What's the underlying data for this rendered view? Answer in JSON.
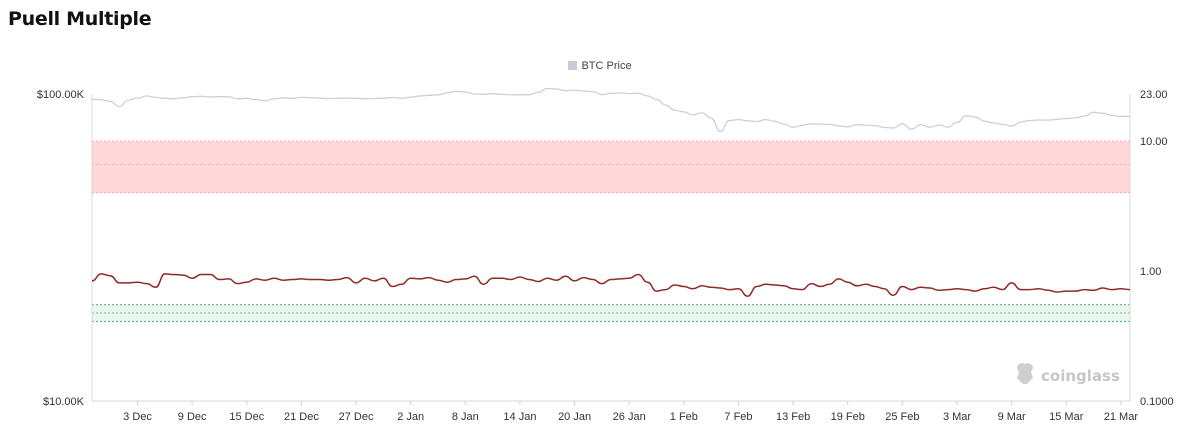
{
  "chart_data": {
    "type": "line",
    "title": "Puell Multiple",
    "legend": [
      {
        "label": "BTC Price",
        "color": "#c9cad3"
      }
    ],
    "watermark": "coinglass",
    "x_ticks": [
      "3 Dec",
      "9 Dec",
      "15 Dec",
      "21 Dec",
      "27 Dec",
      "2 Jan",
      "8 Jan",
      "14 Jan",
      "20 Jan",
      "26 Jan",
      "1 Feb",
      "7 Feb",
      "13 Feb",
      "19 Feb",
      "25 Feb",
      "3 Mar",
      "9 Mar",
      "15 Mar",
      "21 Mar"
    ],
    "left_axis": {
      "scale": "log",
      "range": [
        10000,
        100000
      ],
      "ticks": [
        {
          "value": 100000,
          "label": "$100.00K"
        },
        {
          "value": 10000,
          "label": "$10.00K"
        }
      ]
    },
    "right_axis": {
      "scale": "log",
      "range": [
        0.1,
        23
      ],
      "ticks": [
        {
          "value": 23,
          "label": "23.00"
        },
        {
          "value": 10,
          "label": "10.00"
        },
        {
          "value": 1,
          "label": "1.00"
        },
        {
          "value": 0.1,
          "label": "0.1000"
        }
      ]
    },
    "bands": [
      {
        "from": 4.0,
        "to": 10.0,
        "mid": 6.6,
        "color": "#ffd9da",
        "line": "#f2a5a8"
      },
      {
        "from": 0.41,
        "to": 0.55,
        "mid": 0.475,
        "color": "#e9f7ef",
        "line": "#3aa56b"
      }
    ],
    "series": [
      {
        "name": "BTC Price",
        "axis": "left",
        "color": "#cfd0d6",
        "x": [
          "2024-11-28",
          "2024-11-29",
          "2024-11-30",
          "2024-12-01",
          "2024-12-02",
          "2024-12-03",
          "2024-12-04",
          "2024-12-05",
          "2024-12-06",
          "2024-12-07",
          "2024-12-08",
          "2024-12-09",
          "2024-12-10",
          "2024-12-11",
          "2024-12-12",
          "2024-12-13",
          "2024-12-14",
          "2024-12-15",
          "2024-12-16",
          "2024-12-17",
          "2024-12-18",
          "2024-12-19",
          "2024-12-20",
          "2024-12-21",
          "2024-12-22",
          "2024-12-23",
          "2024-12-24",
          "2024-12-25",
          "2024-12-26",
          "2024-12-27",
          "2024-12-28",
          "2024-12-29",
          "2024-12-30",
          "2024-12-31",
          "2025-01-01",
          "2025-01-02",
          "2025-01-03",
          "2025-01-04",
          "2025-01-05",
          "2025-01-06",
          "2025-01-07",
          "2025-01-08",
          "2025-01-09",
          "2025-01-10",
          "2025-01-11",
          "2025-01-12",
          "2025-01-13",
          "2025-01-14",
          "2025-01-15",
          "2025-01-16",
          "2025-01-17",
          "2025-01-18",
          "2025-01-19",
          "2025-01-20",
          "2025-01-21",
          "2025-01-22",
          "2025-01-23",
          "2025-01-24",
          "2025-01-25",
          "2025-01-26",
          "2025-01-27",
          "2025-01-28",
          "2025-01-29",
          "2025-01-30",
          "2025-01-31",
          "2025-02-01",
          "2025-02-02",
          "2025-02-03",
          "2025-02-04",
          "2025-02-05",
          "2025-02-06",
          "2025-02-07",
          "2025-02-08",
          "2025-02-09",
          "2025-02-10",
          "2025-02-11",
          "2025-02-12",
          "2025-02-13",
          "2025-02-14",
          "2025-02-15",
          "2025-02-16",
          "2025-02-17",
          "2025-02-18",
          "2025-02-19",
          "2025-02-20",
          "2025-02-21",
          "2025-02-22",
          "2025-02-23",
          "2025-02-24",
          "2025-02-25",
          "2025-02-26",
          "2025-02-27",
          "2025-02-28",
          "2025-03-01",
          "2025-03-02",
          "2025-03-03",
          "2025-03-04",
          "2025-03-05",
          "2025-03-06",
          "2025-03-07",
          "2025-03-08",
          "2025-03-09",
          "2025-03-10",
          "2025-03-11",
          "2025-03-12",
          "2025-03-13",
          "2025-03-14",
          "2025-03-15",
          "2025-03-16",
          "2025-03-17",
          "2025-03-18",
          "2025-03-19",
          "2025-03-20",
          "2025-03-21",
          "2025-03-22"
        ],
        "values": [
          96000,
          95800,
          94500,
          91000,
          95500,
          97000,
          98500,
          97500,
          96800,
          96500,
          97200,
          98000,
          98300,
          97800,
          98100,
          97900,
          96500,
          96800,
          95900,
          95000,
          96500,
          97200,
          96800,
          97500,
          97300,
          96900,
          96700,
          96800,
          97000,
          96800,
          96500,
          96700,
          97000,
          97400,
          96800,
          97600,
          98500,
          99000,
          99400,
          100800,
          102000,
          101500,
          100000,
          99800,
          100200,
          99700,
          99300,
          99500,
          99400,
          101200,
          104200,
          103800,
          102600,
          103000,
          102300,
          101800,
          99500,
          100500,
          100800,
          100300,
          100600,
          98600,
          96000,
          92000,
          88500,
          87500,
          85500,
          86800,
          83500,
          75500,
          82000,
          82500,
          81800,
          81300,
          82500,
          81500,
          79800,
          78000,
          79000,
          80000,
          79800,
          79600,
          78800,
          78200,
          79500,
          79200,
          78900,
          77800,
          77500,
          80000,
          76800,
          79500,
          78000,
          79200,
          78000,
          80800,
          84900,
          84000,
          81600,
          80500,
          79700,
          78600,
          81000,
          82000,
          82300,
          82200,
          82700,
          83200,
          83600,
          84700,
          87200,
          86500,
          85200,
          84600,
          84500
        ]
      },
      {
        "name": "Puell Multiple",
        "axis": "right",
        "color": "#8f2a29",
        "x": [
          "2024-11-28",
          "2024-11-29",
          "2024-11-30",
          "2024-12-01",
          "2024-12-02",
          "2024-12-03",
          "2024-12-04",
          "2024-12-05",
          "2024-12-06",
          "2024-12-07",
          "2024-12-08",
          "2024-12-09",
          "2024-12-10",
          "2024-12-11",
          "2024-12-12",
          "2024-12-13",
          "2024-12-14",
          "2024-12-15",
          "2024-12-16",
          "2024-12-17",
          "2024-12-18",
          "2024-12-19",
          "2024-12-20",
          "2024-12-21",
          "2024-12-22",
          "2024-12-23",
          "2024-12-24",
          "2024-12-25",
          "2024-12-26",
          "2024-12-27",
          "2024-12-28",
          "2024-12-29",
          "2024-12-30",
          "2024-12-31",
          "2025-01-01",
          "2025-01-02",
          "2025-01-03",
          "2025-01-04",
          "2025-01-05",
          "2025-01-06",
          "2025-01-07",
          "2025-01-08",
          "2025-01-09",
          "2025-01-10",
          "2025-01-11",
          "2025-01-12",
          "2025-01-13",
          "2025-01-14",
          "2025-01-15",
          "2025-01-16",
          "2025-01-17",
          "2025-01-18",
          "2025-01-19",
          "2025-01-20",
          "2025-01-21",
          "2025-01-22",
          "2025-01-23",
          "2025-01-24",
          "2025-01-25",
          "2025-01-26",
          "2025-01-27",
          "2025-01-28",
          "2025-01-29",
          "2025-01-30",
          "2025-01-31",
          "2025-02-01",
          "2025-02-02",
          "2025-02-03",
          "2025-02-04",
          "2025-02-05",
          "2025-02-06",
          "2025-02-07",
          "2025-02-08",
          "2025-02-09",
          "2025-02-10",
          "2025-02-11",
          "2025-02-12",
          "2025-02-13",
          "2025-02-14",
          "2025-02-15",
          "2025-02-16",
          "2025-02-17",
          "2025-02-18",
          "2025-02-19",
          "2025-02-20",
          "2025-02-21",
          "2025-02-22",
          "2025-02-23",
          "2025-02-24",
          "2025-02-25",
          "2025-02-26",
          "2025-02-27",
          "2025-02-28",
          "2025-03-01",
          "2025-03-02",
          "2025-03-03",
          "2025-03-04",
          "2025-03-05",
          "2025-03-06",
          "2025-03-07",
          "2025-03-08",
          "2025-03-09",
          "2025-03-10",
          "2025-03-11",
          "2025-03-12",
          "2025-03-13",
          "2025-03-14",
          "2025-03-15",
          "2025-03-16",
          "2025-03-17",
          "2025-03-18",
          "2025-03-19",
          "2025-03-20",
          "2025-03-21",
          "2025-03-22"
        ],
        "values": [
          0.84,
          0.95,
          0.92,
          0.81,
          0.81,
          0.82,
          0.8,
          0.75,
          0.95,
          0.94,
          0.93,
          0.88,
          0.94,
          0.94,
          0.86,
          0.87,
          0.8,
          0.82,
          0.87,
          0.85,
          0.88,
          0.85,
          0.86,
          0.87,
          0.86,
          0.86,
          0.85,
          0.86,
          0.89,
          0.81,
          0.88,
          0.84,
          0.88,
          0.76,
          0.79,
          0.88,
          0.87,
          0.89,
          0.85,
          0.82,
          0.86,
          0.87,
          0.91,
          0.79,
          0.88,
          0.88,
          0.86,
          0.9,
          0.86,
          0.83,
          0.88,
          0.85,
          0.91,
          0.84,
          0.89,
          0.86,
          0.8,
          0.86,
          0.87,
          0.88,
          0.94,
          0.82,
          0.7,
          0.72,
          0.78,
          0.76,
          0.73,
          0.77,
          0.75,
          0.74,
          0.72,
          0.73,
          0.64,
          0.76,
          0.79,
          0.78,
          0.77,
          0.73,
          0.72,
          0.8,
          0.76,
          0.79,
          0.87,
          0.82,
          0.77,
          0.79,
          0.76,
          0.73,
          0.65,
          0.76,
          0.72,
          0.75,
          0.74,
          0.71,
          0.72,
          0.73,
          0.72,
          0.7,
          0.73,
          0.75,
          0.72,
          0.81,
          0.72,
          0.72,
          0.73,
          0.71,
          0.69,
          0.7,
          0.7,
          0.72,
          0.71,
          0.74,
          0.72,
          0.73,
          0.72
        ]
      }
    ]
  }
}
